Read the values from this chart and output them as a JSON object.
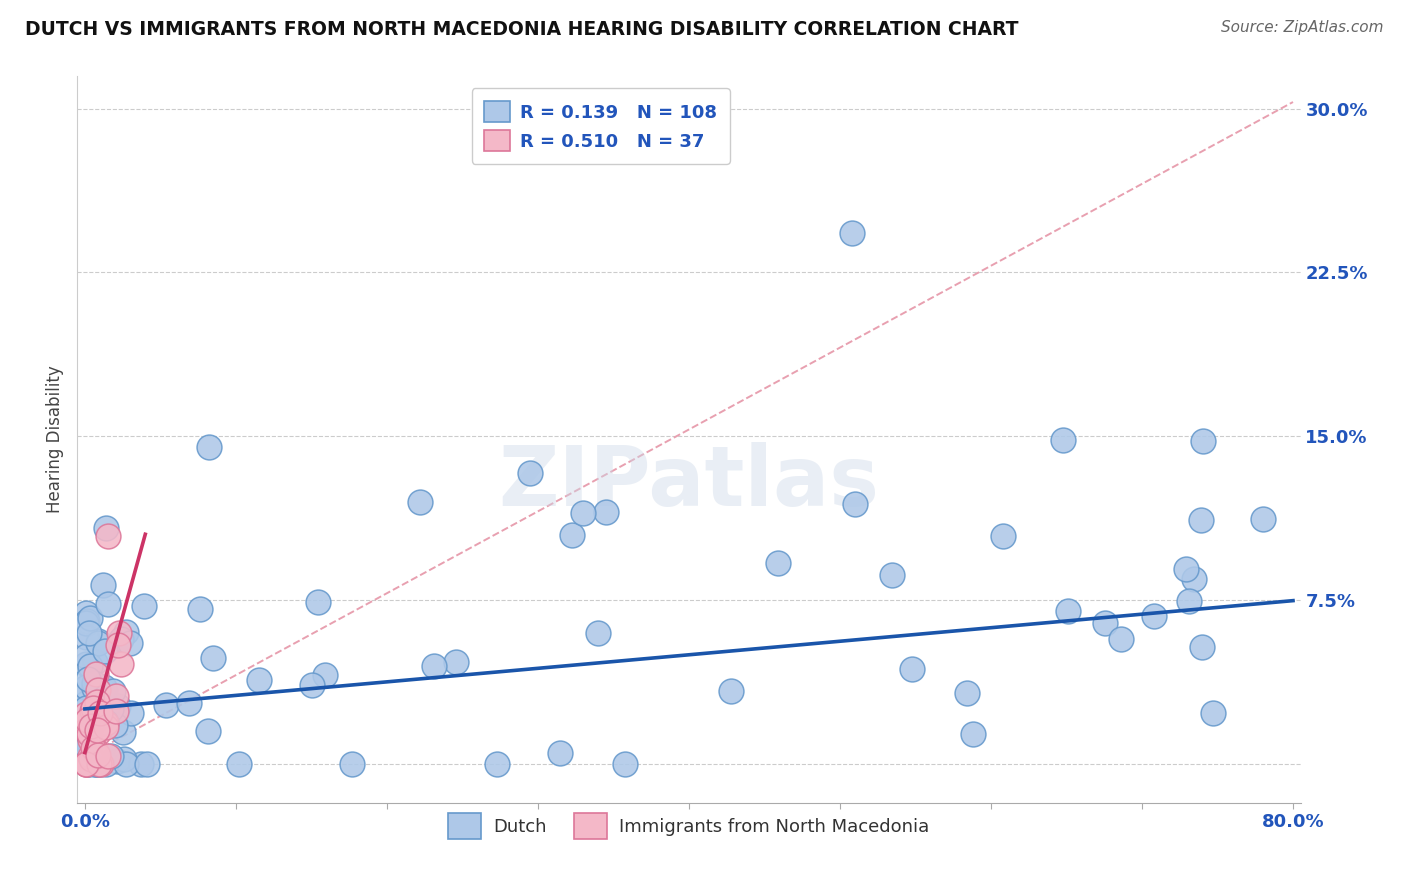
{
  "title": "DUTCH VS IMMIGRANTS FROM NORTH MACEDONIA HEARING DISABILITY CORRELATION CHART",
  "source": "Source: ZipAtlas.com",
  "ylabel": "Hearing Disability",
  "xlim": [
    0.0,
    0.8
  ],
  "ylim": [
    -0.018,
    0.315
  ],
  "watermark": "ZIPatlas",
  "dutch_color": "#aec8e8",
  "dutch_edge_color": "#6699cc",
  "macedonian_color": "#f4b8c8",
  "macedonian_edge_color": "#dd7799",
  "dutch_R": 0.139,
  "dutch_N": 108,
  "macedonian_R": 0.51,
  "macedonian_N": 37,
  "dutch_line_color": "#1a55aa",
  "macedonian_line_color": "#cc3366",
  "macedonian_dashed_color": "#e8a0b0",
  "dutch_dashed_color": "#b8cce4",
  "legend_label_dutch": "Dutch",
  "legend_label_macedonian": "Immigrants from North Macedonia",
  "ytick_positions": [
    0.0,
    0.075,
    0.15,
    0.225,
    0.3
  ],
  "ytick_labels": [
    "",
    "7.5%",
    "15.0%",
    "22.5%",
    "30.0%"
  ],
  "r_n_color": "#2255bb",
  "title_fontsize": 13.5,
  "source_fontsize": 11,
  "marker_size": 320,
  "dutch_slope": 0.068,
  "dutch_intercept": 0.028,
  "macedonian_slope_solid": 2.8,
  "macedonian_intercept_solid": 0.005,
  "macedonian_slope_dashed": 0.38,
  "macedonian_intercept_dashed": 0.002
}
